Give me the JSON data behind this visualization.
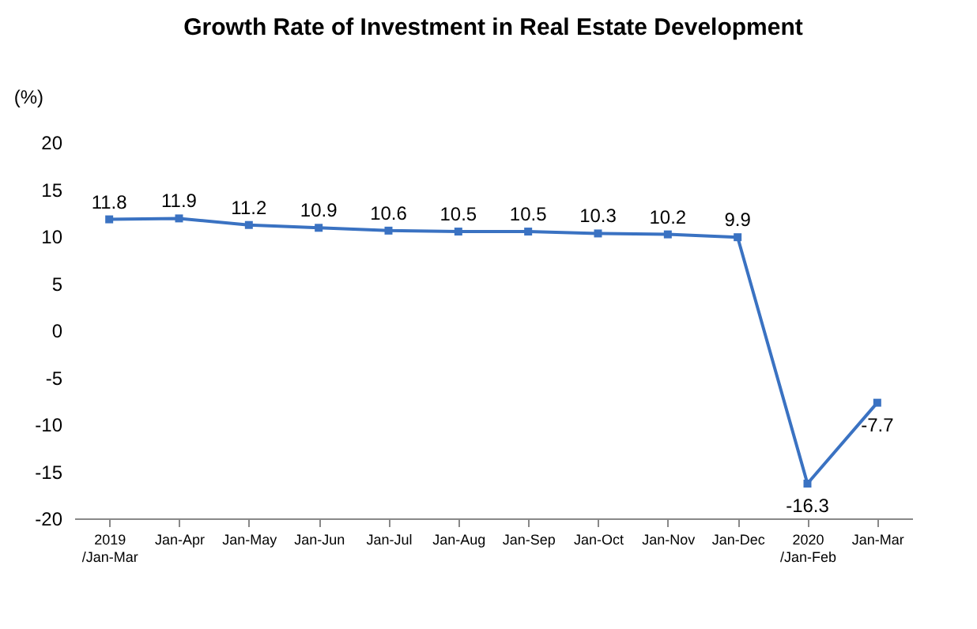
{
  "chart_data": {
    "type": "line",
    "title": "Growth Rate of Investment in Real Estate Development",
    "ylabel": "(%)",
    "categories": [
      "2019\n/Jan-Mar",
      "Jan-Apr",
      "Jan-May",
      "Jan-Jun",
      "Jan-Jul",
      "Jan-Aug",
      "Jan-Sep",
      "Jan-Oct",
      "Jan-Nov",
      "Jan-Dec",
      "2020\n/Jan-Feb",
      "Jan-Mar"
    ],
    "values": [
      11.8,
      11.9,
      11.2,
      10.9,
      10.6,
      10.5,
      10.5,
      10.3,
      10.2,
      9.9,
      -16.3,
      -7.7
    ],
    "color": "#3a72c2",
    "ylim": [
      -20,
      20
    ],
    "yticks": [
      -20,
      -15,
      -10,
      -5,
      0,
      5,
      10,
      15,
      20
    ],
    "grid": false,
    "marker": "square",
    "line_style": "solid",
    "data_labels": true
  }
}
